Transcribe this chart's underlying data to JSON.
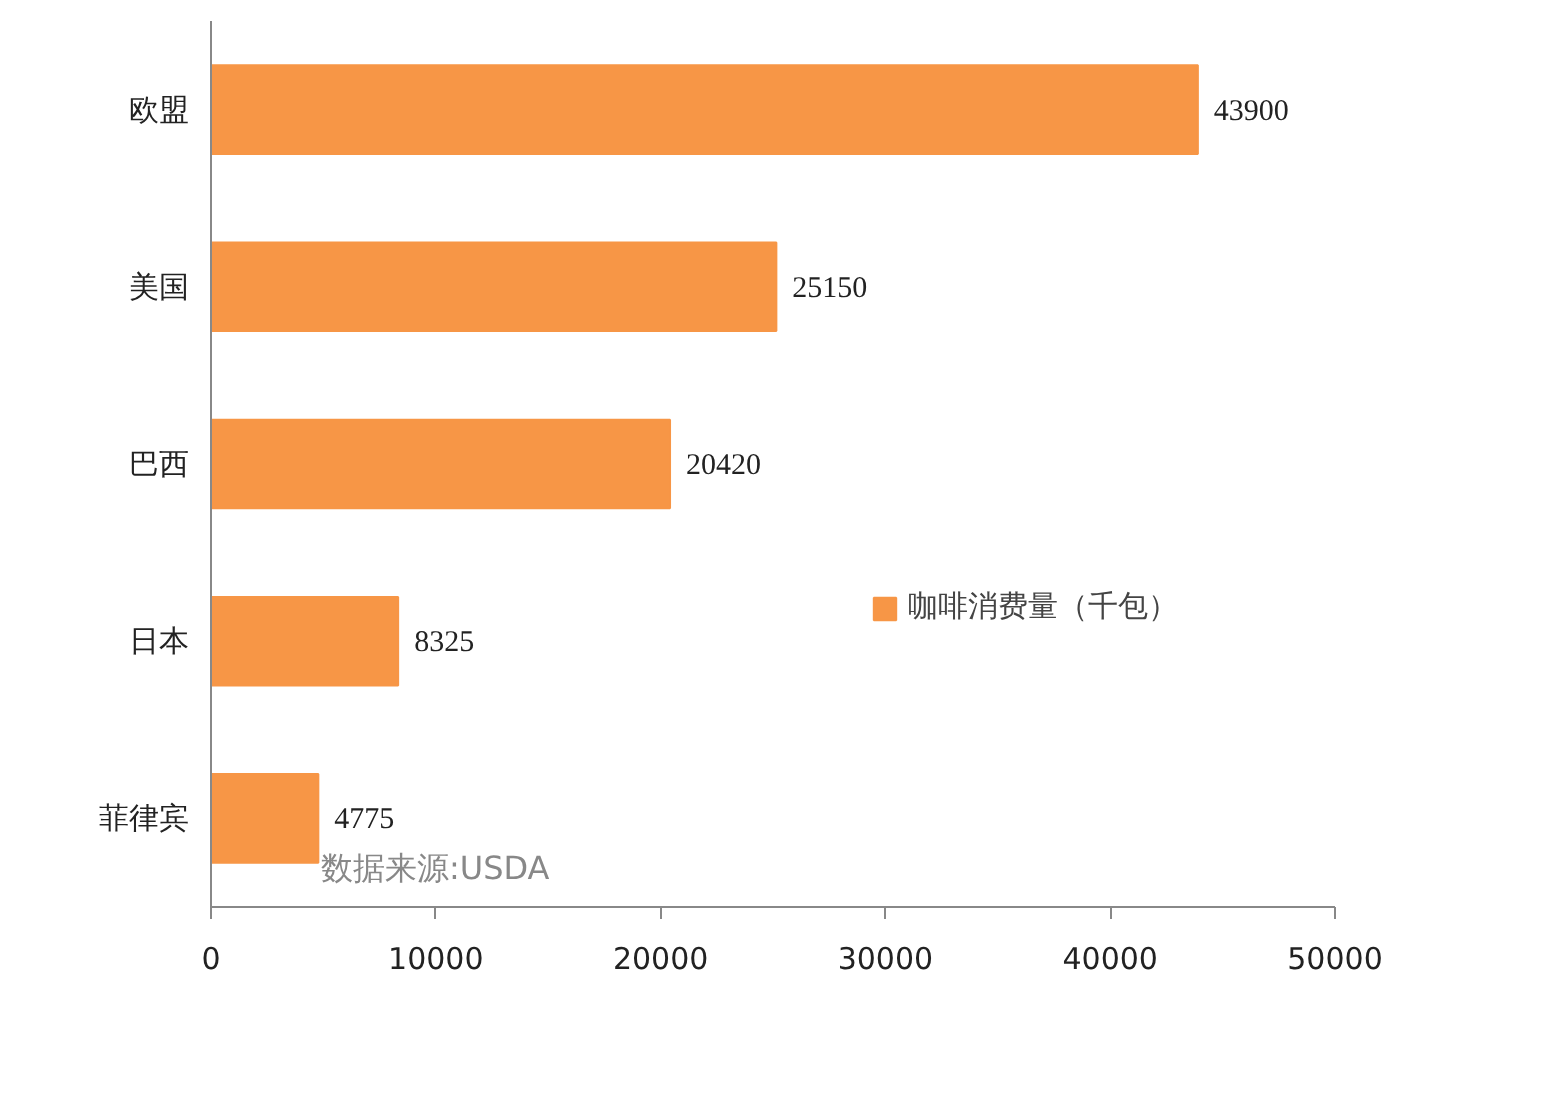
{
  "chart_data": {
    "type": "bar",
    "orientation": "horizontal",
    "categories": [
      "欧盟",
      "美国",
      "巴西",
      "日本",
      "菲律宾"
    ],
    "series": [
      {
        "name": "咖啡消费量（千包）",
        "color": "#f79646",
        "values": [
          43900,
          25150,
          20420,
          8325,
          4775
        ]
      }
    ],
    "xlim": [
      0,
      50000
    ],
    "xticks": [
      0,
      10000,
      20000,
      30000,
      40000,
      50000
    ],
    "data_labels": true,
    "legend": "right",
    "grid": false,
    "annotations": [
      "数据来源:USDA"
    ]
  }
}
